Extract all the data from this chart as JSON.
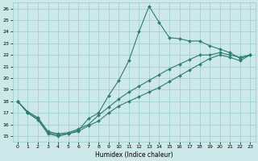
{
  "xlabel": "Humidex (Indice chaleur)",
  "bg_color": "#cce8e8",
  "grid_color": "#99cccc",
  "line_color": "#2e7d6e",
  "xlim": [
    -0.5,
    23.5
  ],
  "ylim": [
    14.5,
    26.5
  ],
  "xticks": [
    0,
    1,
    2,
    3,
    4,
    5,
    6,
    7,
    8,
    9,
    10,
    11,
    12,
    13,
    14,
    15,
    16,
    17,
    18,
    19,
    20,
    21,
    22,
    23
  ],
  "yticks": [
    15,
    16,
    17,
    18,
    19,
    20,
    21,
    22,
    23,
    24,
    25,
    26
  ],
  "series1_x": [
    0,
    1,
    2,
    3,
    4,
    5,
    6,
    7,
    8,
    9,
    10,
    11,
    12,
    13,
    14,
    15,
    16,
    17,
    18,
    19,
    20,
    21,
    22,
    23
  ],
  "series1_y": [
    18.0,
    17.0,
    16.5,
    15.3,
    15.1,
    15.2,
    15.5,
    16.5,
    17.0,
    18.5,
    19.8,
    21.5,
    24.0,
    26.2,
    24.8,
    23.5,
    23.4,
    23.2,
    23.2,
    22.8,
    22.5,
    22.2,
    21.7,
    22.0
  ],
  "series2_x": [
    0,
    1,
    2,
    3,
    4,
    5,
    6,
    7,
    8,
    9,
    10,
    11,
    12,
    13,
    14,
    15,
    16,
    17,
    18,
    19,
    20,
    21,
    22,
    23
  ],
  "series2_y": [
    18.0,
    17.1,
    16.6,
    15.4,
    15.2,
    15.3,
    15.6,
    16.0,
    16.8,
    17.5,
    18.2,
    18.8,
    19.3,
    19.8,
    20.3,
    20.8,
    21.2,
    21.6,
    22.0,
    22.0,
    22.2,
    22.0,
    21.8,
    22.0
  ],
  "series3_x": [
    0,
    1,
    2,
    3,
    4,
    5,
    6,
    7,
    8,
    9,
    10,
    11,
    12,
    13,
    14,
    15,
    16,
    17,
    18,
    19,
    20,
    21,
    22,
    23
  ],
  "series3_y": [
    18.0,
    17.0,
    16.4,
    15.2,
    15.0,
    15.2,
    15.4,
    15.9,
    16.3,
    17.0,
    17.6,
    18.0,
    18.4,
    18.8,
    19.2,
    19.7,
    20.2,
    20.7,
    21.2,
    21.7,
    22.0,
    21.8,
    21.5,
    22.0
  ]
}
